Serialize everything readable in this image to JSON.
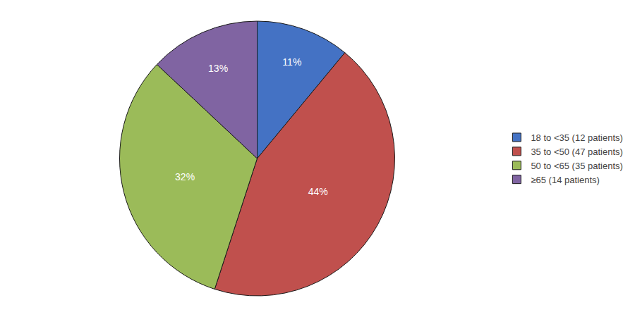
{
  "chart_data": {
    "type": "pie",
    "categories": [
      "18 to <35 (12 patients)",
      "35 to <50 (47 patients)",
      "50 to <65 (35 patients)",
      "≥65 (14 patients)"
    ],
    "values": [
      11,
      44,
      32,
      13
    ],
    "value_labels": [
      "11%",
      "44%",
      "32%",
      "13%"
    ],
    "colors": [
      "#4472C4",
      "#C0504D",
      "#9BBB59",
      "#8064A2"
    ],
    "data_labels": true,
    "legend": "right"
  }
}
